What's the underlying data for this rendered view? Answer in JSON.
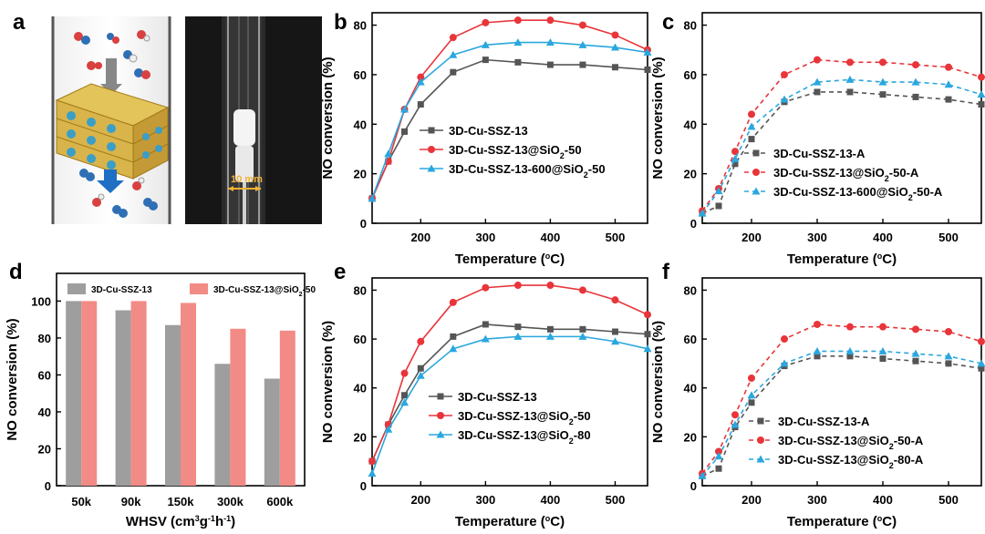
{
  "panel_labels": {
    "a": "a",
    "b": "b",
    "c": "c",
    "d": "d",
    "e": "e",
    "f": "f"
  },
  "photo": {
    "scale_label": "10 mm"
  },
  "colors": {
    "gray": "#555555",
    "red": "#e8353a",
    "blue": "#2aa7de",
    "bar_gray": "#9e9e9e",
    "bar_pink": "#f28b86"
  },
  "chart_data": [
    {
      "id": "b",
      "type": "line",
      "xlabel": "Temperature (°C)",
      "ylabel": "NO conversion (%)",
      "xlim": [
        125,
        550
      ],
      "ylim": [
        0,
        85
      ],
      "xticks": [
        200,
        300,
        400,
        500
      ],
      "yticks": [
        0,
        20,
        40,
        60,
        80
      ],
      "legend": "lower-right",
      "series": [
        {
          "name": "3D-Cu-SSZ-13",
          "marker": "square",
          "dashed": false,
          "color": "#555555",
          "x": [
            125,
            150,
            175,
            200,
            250,
            300,
            350,
            400,
            450,
            500,
            550
          ],
          "y": [
            10,
            25,
            37,
            48,
            61,
            66,
            65,
            64,
            64,
            63,
            62
          ]
        },
        {
          "name": "3D-Cu-SSZ-13@SiO2-50",
          "marker": "circle",
          "dashed": false,
          "color": "#e8353a",
          "x": [
            125,
            150,
            175,
            200,
            250,
            300,
            350,
            400,
            450,
            500,
            550
          ],
          "y": [
            10,
            25,
            46,
            59,
            75,
            81,
            82,
            82,
            80,
            76,
            70
          ]
        },
        {
          "name": "3D-Cu-SSZ-13-600@SiO2-50",
          "marker": "triangle",
          "dashed": false,
          "color": "#2aa7de",
          "x": [
            125,
            150,
            175,
            200,
            250,
            300,
            350,
            400,
            450,
            500,
            550
          ],
          "y": [
            10,
            28,
            46,
            57,
            68,
            72,
            73,
            73,
            72,
            71,
            69
          ]
        }
      ]
    },
    {
      "id": "c",
      "type": "line",
      "xlabel": "Temperature (°C)",
      "ylabel": "NO conversion (%)",
      "xlim": [
        125,
        550
      ],
      "ylim": [
        0,
        85
      ],
      "xticks": [
        200,
        300,
        400,
        500
      ],
      "yticks": [
        0,
        20,
        40,
        60,
        80
      ],
      "legend": "lower-right",
      "series": [
        {
          "name": "3D-Cu-SSZ-13-A",
          "marker": "square",
          "dashed": true,
          "color": "#555555",
          "x": [
            125,
            150,
            175,
            200,
            250,
            300,
            350,
            400,
            450,
            500,
            550
          ],
          "y": [
            4,
            7,
            24,
            34,
            49,
            53,
            53,
            52,
            51,
            50,
            48
          ]
        },
        {
          "name": "3D-Cu-SSZ-13@SiO2-50-A",
          "marker": "circle",
          "dashed": true,
          "color": "#e8353a",
          "x": [
            125,
            150,
            175,
            200,
            250,
            300,
            350,
            400,
            450,
            500,
            550
          ],
          "y": [
            5,
            14,
            29,
            44,
            60,
            66,
            65,
            65,
            64,
            63,
            59
          ]
        },
        {
          "name": "3D-Cu-SSZ-13-600@SiO2-50-A",
          "marker": "triangle",
          "dashed": true,
          "color": "#2aa7de",
          "x": [
            125,
            150,
            175,
            200,
            250,
            300,
            350,
            400,
            450,
            500,
            550
          ],
          "y": [
            4,
            13,
            26,
            39,
            50,
            57,
            58,
            57,
            57,
            56,
            52
          ]
        }
      ]
    },
    {
      "id": "d",
      "type": "bar",
      "xlabel": "WHSV (cm3g-1h-1)",
      "ylabel": "NO conversion (%)",
      "ylim": [
        0,
        115
      ],
      "yticks": [
        0,
        20,
        40,
        60,
        80,
        100
      ],
      "legend": "top",
      "categories": [
        "50k",
        "90k",
        "150k",
        "300k",
        "600k"
      ],
      "series": [
        {
          "name": "3D-Cu-SSZ-13",
          "color": "#9e9e9e",
          "values": [
            100,
            95,
            87,
            66,
            58
          ]
        },
        {
          "name": "3D-Cu-SSZ-13@SiO2-50",
          "color": "#f28b86",
          "values": [
            100,
            100,
            99,
            85,
            84
          ]
        }
      ]
    },
    {
      "id": "e",
      "type": "line",
      "xlabel": "Temperature (°C)",
      "ylabel": "NO conversion (%)",
      "xlim": [
        125,
        550
      ],
      "ylim": [
        0,
        85
      ],
      "xticks": [
        200,
        300,
        400,
        500
      ],
      "yticks": [
        0,
        20,
        40,
        60,
        80
      ],
      "legend": "lower-right",
      "series": [
        {
          "name": "3D-Cu-SSZ-13",
          "marker": "square",
          "dashed": false,
          "color": "#555555",
          "x": [
            125,
            150,
            175,
            200,
            250,
            300,
            350,
            400,
            450,
            500,
            550
          ],
          "y": [
            10,
            25,
            37,
            48,
            61,
            66,
            65,
            64,
            64,
            63,
            62
          ]
        },
        {
          "name": "3D-Cu-SSZ-13@SiO2-50",
          "marker": "circle",
          "dashed": false,
          "color": "#e8353a",
          "x": [
            125,
            150,
            175,
            200,
            250,
            300,
            350,
            400,
            450,
            500,
            550
          ],
          "y": [
            10,
            25,
            46,
            59,
            75,
            81,
            82,
            82,
            80,
            76,
            70
          ]
        },
        {
          "name": "3D-Cu-SSZ-13@SiO2-80",
          "marker": "triangle",
          "dashed": false,
          "color": "#2aa7de",
          "x": [
            125,
            150,
            175,
            200,
            250,
            300,
            350,
            400,
            450,
            500,
            550
          ],
          "y": [
            5,
            23,
            34,
            45,
            56,
            60,
            61,
            61,
            61,
            59,
            56
          ]
        }
      ]
    },
    {
      "id": "f",
      "type": "line",
      "xlabel": "Temperature (°C)",
      "ylabel": "NO conversion (%)",
      "xlim": [
        125,
        550
      ],
      "ylim": [
        0,
        85
      ],
      "xticks": [
        200,
        300,
        400,
        500
      ],
      "yticks": [
        0,
        20,
        40,
        60,
        80
      ],
      "legend": "lower-right",
      "series": [
        {
          "name": "3D-Cu-SSZ-13-A",
          "marker": "square",
          "dashed": true,
          "color": "#555555",
          "x": [
            125,
            150,
            175,
            200,
            250,
            300,
            350,
            400,
            450,
            500,
            550
          ],
          "y": [
            4,
            7,
            24,
            34,
            49,
            53,
            53,
            52,
            51,
            50,
            48
          ]
        },
        {
          "name": "3D-Cu-SSZ-13@SiO2-50-A",
          "marker": "circle",
          "dashed": true,
          "color": "#e8353a",
          "x": [
            125,
            150,
            175,
            200,
            250,
            300,
            350,
            400,
            450,
            500,
            550
          ],
          "y": [
            5,
            14,
            29,
            44,
            60,
            66,
            65,
            65,
            64,
            63,
            59
          ]
        },
        {
          "name": "3D-Cu-SSZ-13@SiO2-80-A",
          "marker": "triangle",
          "dashed": true,
          "color": "#2aa7de",
          "x": [
            125,
            150,
            175,
            200,
            250,
            300,
            350,
            400,
            450,
            500,
            550
          ],
          "y": [
            4,
            12,
            25,
            37,
            50,
            55,
            55,
            55,
            54,
            53,
            50
          ]
        }
      ]
    }
  ]
}
